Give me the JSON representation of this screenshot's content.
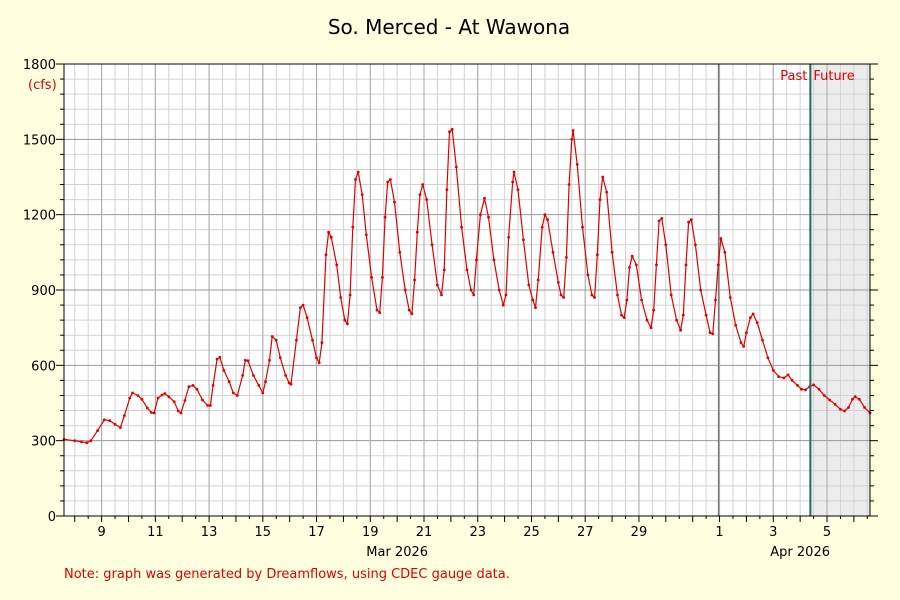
{
  "chart_data": {
    "type": "line",
    "title": "So. Merced - At Wawona",
    "ylabel": "(cfs)",
    "xlabel": "",
    "ylim": [
      0,
      1800
    ],
    "yticks": [
      0,
      300,
      600,
      900,
      1200,
      1500,
      1800
    ],
    "xlim_days": [
      7.6,
      37.6
    ],
    "x_ticks": [
      {
        "day": 9,
        "label": "9"
      },
      {
        "day": 11,
        "label": "11"
      },
      {
        "day": 13,
        "label": "13"
      },
      {
        "day": 15,
        "label": "15"
      },
      {
        "day": 17,
        "label": "17"
      },
      {
        "day": 19,
        "label": "19"
      },
      {
        "day": 21,
        "label": "21"
      },
      {
        "day": 23,
        "label": "23"
      },
      {
        "day": 25,
        "label": "25"
      },
      {
        "day": 27,
        "label": "27"
      },
      {
        "day": 29,
        "label": "29"
      },
      {
        "day": 32,
        "label": "1"
      },
      {
        "day": 34,
        "label": "3"
      },
      {
        "day": 36,
        "label": "5"
      }
    ],
    "month_labels": [
      {
        "day": 20,
        "label": "Mar 2026"
      },
      {
        "day": 35,
        "label": "Apr 2026"
      }
    ],
    "month_boundary_day": 31.96,
    "now_day": 35.38,
    "past_label": "Past",
    "future_label": "Future",
    "grid": true,
    "series": [
      {
        "color": "#e00000",
        "points": [
          [
            7.6,
            305
          ],
          [
            8.0,
            300
          ],
          [
            8.25,
            295
          ],
          [
            8.45,
            292
          ],
          [
            8.6,
            300
          ],
          [
            8.85,
            340
          ],
          [
            9.1,
            383
          ],
          [
            9.3,
            380
          ],
          [
            9.5,
            365
          ],
          [
            9.7,
            352
          ],
          [
            9.85,
            400
          ],
          [
            10.05,
            470
          ],
          [
            10.15,
            490
          ],
          [
            10.35,
            480
          ],
          [
            10.5,
            465
          ],
          [
            10.7,
            430
          ],
          [
            10.85,
            412
          ],
          [
            10.95,
            410
          ],
          [
            11.1,
            470
          ],
          [
            11.25,
            482
          ],
          [
            11.35,
            488
          ],
          [
            11.5,
            475
          ],
          [
            11.7,
            455
          ],
          [
            11.85,
            418
          ],
          [
            11.95,
            410
          ],
          [
            12.1,
            460
          ],
          [
            12.25,
            515
          ],
          [
            12.4,
            520
          ],
          [
            12.55,
            505
          ],
          [
            12.75,
            462
          ],
          [
            12.95,
            440
          ],
          [
            13.05,
            440
          ],
          [
            13.15,
            520
          ],
          [
            13.3,
            625
          ],
          [
            13.4,
            632
          ],
          [
            13.55,
            580
          ],
          [
            13.75,
            535
          ],
          [
            13.9,
            490
          ],
          [
            14.05,
            480
          ],
          [
            14.25,
            560
          ],
          [
            14.35,
            620
          ],
          [
            14.45,
            618
          ],
          [
            14.65,
            560
          ],
          [
            14.85,
            520
          ],
          [
            15.0,
            490
          ],
          [
            15.1,
            535
          ],
          [
            15.25,
            620
          ],
          [
            15.35,
            715
          ],
          [
            15.5,
            700
          ],
          [
            15.65,
            630
          ],
          [
            15.85,
            560
          ],
          [
            15.98,
            530
          ],
          [
            16.05,
            525
          ],
          [
            16.25,
            700
          ],
          [
            16.4,
            830
          ],
          [
            16.5,
            840
          ],
          [
            16.65,
            790
          ],
          [
            16.85,
            700
          ],
          [
            17.0,
            630
          ],
          [
            17.1,
            610
          ],
          [
            17.2,
            690
          ],
          [
            17.35,
            1040
          ],
          [
            17.45,
            1130
          ],
          [
            17.55,
            1110
          ],
          [
            17.75,
            1000
          ],
          [
            17.9,
            870
          ],
          [
            18.05,
            780
          ],
          [
            18.15,
            765
          ],
          [
            18.25,
            880
          ],
          [
            18.35,
            1150
          ],
          [
            18.45,
            1340
          ],
          [
            18.55,
            1370
          ],
          [
            18.7,
            1280
          ],
          [
            18.85,
            1120
          ],
          [
            19.05,
            950
          ],
          [
            19.25,
            820
          ],
          [
            19.35,
            810
          ],
          [
            19.45,
            950
          ],
          [
            19.55,
            1190
          ],
          [
            19.65,
            1330
          ],
          [
            19.75,
            1340
          ],
          [
            19.9,
            1250
          ],
          [
            20.1,
            1050
          ],
          [
            20.3,
            900
          ],
          [
            20.45,
            820
          ],
          [
            20.55,
            805
          ],
          [
            20.65,
            940
          ],
          [
            20.75,
            1130
          ],
          [
            20.85,
            1280
          ],
          [
            20.95,
            1320
          ],
          [
            21.1,
            1260
          ],
          [
            21.3,
            1080
          ],
          [
            21.5,
            920
          ],
          [
            21.65,
            880
          ],
          [
            21.75,
            980
          ],
          [
            21.85,
            1300
          ],
          [
            21.95,
            1530
          ],
          [
            22.05,
            1540
          ],
          [
            22.2,
            1390
          ],
          [
            22.4,
            1150
          ],
          [
            22.6,
            980
          ],
          [
            22.75,
            900
          ],
          [
            22.85,
            880
          ],
          [
            22.95,
            1020
          ],
          [
            23.1,
            1200
          ],
          [
            23.25,
            1265
          ],
          [
            23.4,
            1190
          ],
          [
            23.6,
            1020
          ],
          [
            23.8,
            900
          ],
          [
            23.95,
            840
          ],
          [
            24.05,
            880
          ],
          [
            24.15,
            1110
          ],
          [
            24.3,
            1330
          ],
          [
            24.35,
            1370
          ],
          [
            24.5,
            1300
          ],
          [
            24.7,
            1100
          ],
          [
            24.9,
            920
          ],
          [
            25.05,
            860
          ],
          [
            25.15,
            830
          ],
          [
            25.25,
            940
          ],
          [
            25.4,
            1150
          ],
          [
            25.5,
            1200
          ],
          [
            25.6,
            1180
          ],
          [
            25.8,
            1050
          ],
          [
            26.0,
            930
          ],
          [
            26.1,
            880
          ],
          [
            26.2,
            870
          ],
          [
            26.3,
            1030
          ],
          [
            26.4,
            1320
          ],
          [
            26.5,
            1500
          ],
          [
            26.55,
            1535
          ],
          [
            26.7,
            1400
          ],
          [
            26.9,
            1150
          ],
          [
            27.1,
            960
          ],
          [
            27.25,
            880
          ],
          [
            27.35,
            870
          ],
          [
            27.45,
            1040
          ],
          [
            27.55,
            1260
          ],
          [
            27.65,
            1350
          ],
          [
            27.8,
            1290
          ],
          [
            28.0,
            1050
          ],
          [
            28.2,
            880
          ],
          [
            28.35,
            800
          ],
          [
            28.45,
            790
          ],
          [
            28.55,
            860
          ],
          [
            28.65,
            990
          ],
          [
            28.75,
            1035
          ],
          [
            28.9,
            1000
          ],
          [
            29.1,
            860
          ],
          [
            29.3,
            780
          ],
          [
            29.45,
            750
          ],
          [
            29.55,
            820
          ],
          [
            29.65,
            1000
          ],
          [
            29.75,
            1175
          ],
          [
            29.85,
            1185
          ],
          [
            30.0,
            1080
          ],
          [
            30.2,
            880
          ],
          [
            30.4,
            780
          ],
          [
            30.55,
            740
          ],
          [
            30.65,
            800
          ],
          [
            30.75,
            1000
          ],
          [
            30.85,
            1170
          ],
          [
            30.95,
            1180
          ],
          [
            31.1,
            1080
          ],
          [
            31.3,
            900
          ],
          [
            31.5,
            800
          ],
          [
            31.65,
            730
          ],
          [
            31.75,
            725
          ],
          [
            31.85,
            860
          ],
          [
            31.95,
            1000
          ],
          [
            32.05,
            1105
          ],
          [
            32.2,
            1050
          ],
          [
            32.4,
            870
          ],
          [
            32.6,
            760
          ],
          [
            32.8,
            690
          ],
          [
            32.9,
            675
          ],
          [
            33.0,
            730
          ],
          [
            33.15,
            790
          ],
          [
            33.25,
            805
          ],
          [
            33.4,
            770
          ],
          [
            33.6,
            700
          ],
          [
            33.8,
            630
          ],
          [
            34.0,
            580
          ],
          [
            34.2,
            555
          ],
          [
            34.4,
            550
          ],
          [
            34.55,
            562
          ],
          [
            34.7,
            540
          ],
          [
            34.9,
            520
          ],
          [
            35.05,
            505
          ],
          [
            35.2,
            502
          ],
          [
            35.35,
            515
          ],
          [
            35.5,
            522
          ],
          [
            35.7,
            505
          ],
          [
            35.9,
            480
          ],
          [
            36.1,
            462
          ],
          [
            36.3,
            445
          ],
          [
            36.5,
            425
          ],
          [
            36.65,
            418
          ],
          [
            36.8,
            432
          ],
          [
            36.95,
            465
          ],
          [
            37.05,
            475
          ],
          [
            37.2,
            465
          ],
          [
            37.4,
            432
          ],
          [
            37.6,
            410
          ]
        ]
      }
    ],
    "note": "Note: graph was generated by Dreamflows, using CDEC gauge data."
  }
}
